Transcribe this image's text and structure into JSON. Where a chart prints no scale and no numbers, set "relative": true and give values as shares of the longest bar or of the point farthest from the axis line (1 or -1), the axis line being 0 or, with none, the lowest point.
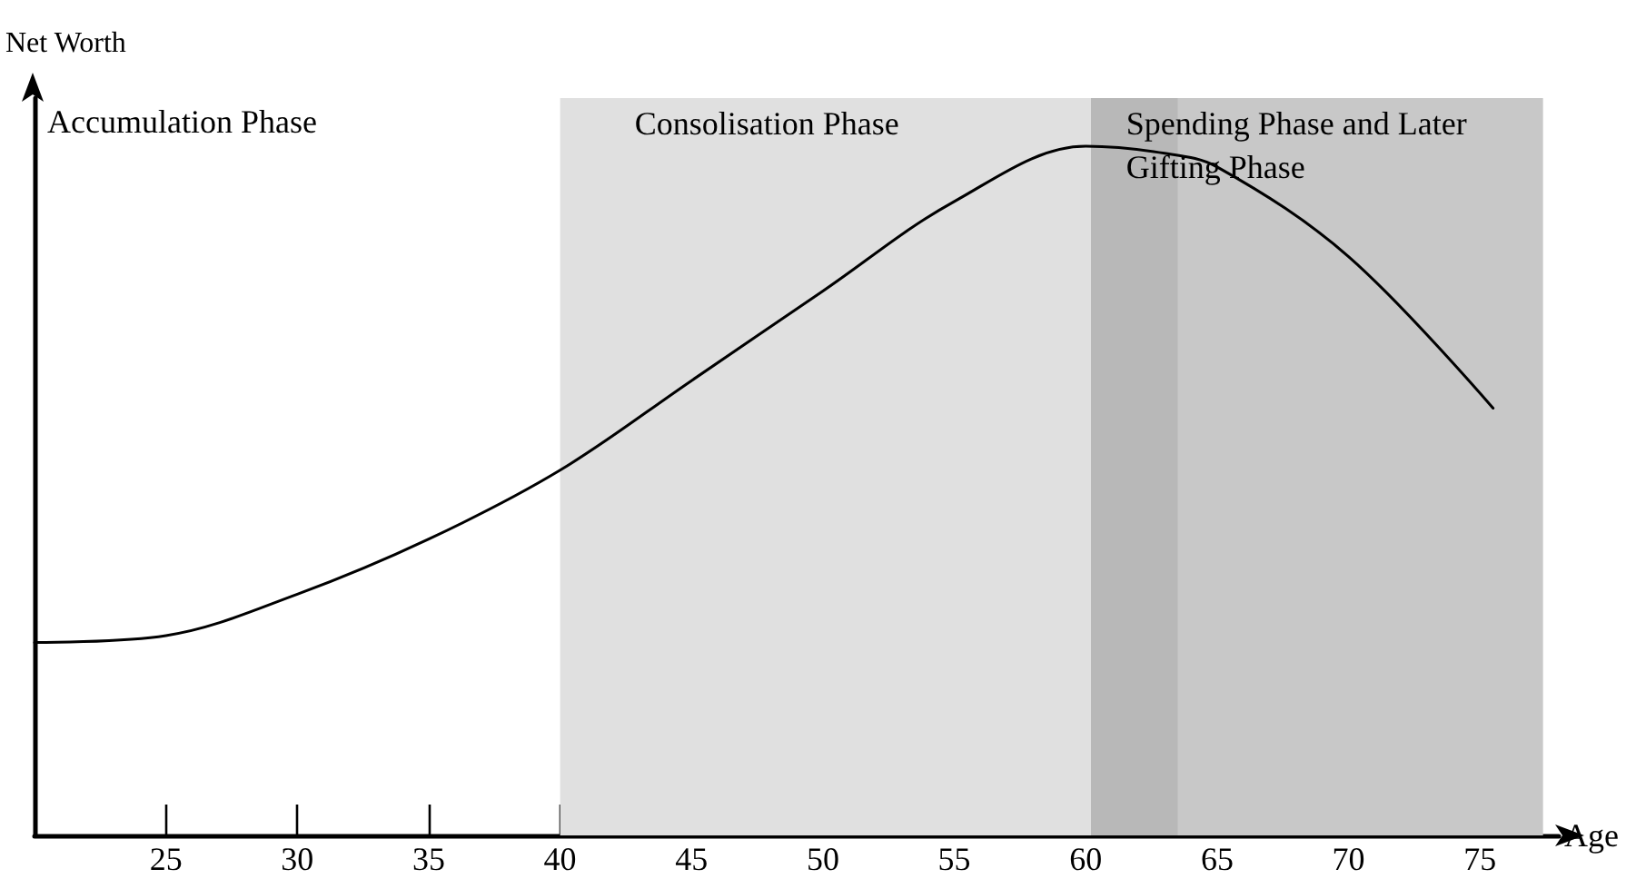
{
  "chart_data": {
    "type": "line",
    "xlabel": "Age",
    "ylabel": "Net Worth",
    "relative": true,
    "tick_labels": "x",
    "x": [
      20,
      25,
      30,
      35,
      40,
      45,
      50,
      55,
      60,
      63,
      65,
      70,
      75.5
    ],
    "series": [
      {
        "color": "#000000",
        "values": [
          0.28,
          0.29,
          0.35,
          0.43,
          0.53,
          0.66,
          0.79,
          0.92,
          1.0,
          0.99,
          0.97,
          0.84,
          0.62
        ]
      }
    ],
    "xlim": [
      20,
      78
    ],
    "xticks": [
      25,
      30,
      35,
      40,
      45,
      50,
      55,
      60,
      65,
      70,
      75
    ],
    "bands": [
      {
        "axis": "x",
        "from": 40,
        "to": 60.2,
        "label": "Consolisation Phase",
        "color": "#e0e0e0"
      },
      {
        "axis": "x",
        "from": 60.2,
        "to": 77.4,
        "label": "Spending Phase and Later Gifting Phase",
        "color": "#c8c8c8"
      },
      {
        "axis": "x",
        "from": 60.2,
        "to": 63.5,
        "color": "#b8b8b8"
      }
    ],
    "annotations": [
      "Accumulation Phase"
    ]
  }
}
